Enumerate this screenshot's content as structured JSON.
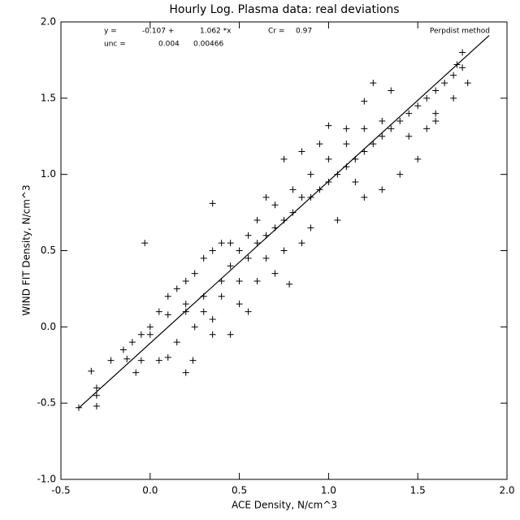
{
  "chart_data": {
    "type": "scatter",
    "title": "Hourly Log. Plasma data: real deviations",
    "x_label": "ACE Density, N/cm^3",
    "y_label": "WIND FIT Density, N/cm^3",
    "annotations": [
      "y =",
      "-0.107 +",
      "1.062 *x",
      "Cr =",
      "0.97",
      "unc =",
      "0.004",
      "0.00466",
      "Perpdist method"
    ],
    "xlim": [
      -0.5,
      2.0
    ],
    "ylim": [
      -1.0,
      2.0
    ],
    "xticks": [
      -0.5,
      {
        "value": 0,
        "label": "0.0"
      },
      0.5,
      {
        "value": 1,
        "label": "1.0"
      },
      1.5,
      {
        "value": 2,
        "label": "2.0"
      }
    ],
    "yticks": [
      {
        "value": -1,
        "label": "-1.0"
      },
      -0.5,
      {
        "value": 0,
        "label": "0.0"
      },
      0.5,
      {
        "value": 1,
        "label": "1.0"
      },
      1.5,
      {
        "value": 2,
        "label": "2.0"
      }
    ],
    "color": "#000000",
    "x": [
      -0.4,
      -0.3,
      -0.3,
      -0.3,
      -0.33,
      -0.22,
      -0.15,
      -0.13,
      -0.08,
      -0.05,
      -0.1,
      -0.05,
      0.0,
      0.05,
      0.1,
      0.15,
      0.2,
      0.24,
      -0.03,
      0.35,
      0.1,
      0.1,
      0.15,
      0.2,
      0.2,
      0.25,
      0.3,
      0.3,
      0.35,
      0.4,
      0.4,
      0.45,
      0.5,
      0.5,
      0.55,
      0.55,
      0.6,
      0.6,
      0.65,
      0.7,
      0.7,
      0.75,
      0.8,
      0.8,
      0.85,
      0.9,
      0.9,
      0.95,
      1.0,
      1.0,
      1.05,
      1.1,
      1.1,
      1.15,
      1.2,
      1.2,
      1.25,
      1.3,
      1.3,
      1.35,
      1.4,
      1.45,
      1.5,
      1.55,
      1.6,
      1.65,
      1.7,
      1.75,
      1.78,
      1.72,
      1.25,
      1.2,
      1.0,
      0.85,
      0.75,
      1.05,
      0.9,
      0.75,
      0.7,
      0.6,
      0.5,
      0.55,
      0.35,
      0.45,
      0.35,
      1.2,
      1.3,
      1.4,
      1.5,
      1.6,
      0.25,
      0.0,
      0.05,
      0.2,
      0.3,
      0.4,
      0.45,
      0.65,
      0.95,
      1.35,
      1.75,
      0.78,
      1.15,
      1.1,
      0.85,
      0.65,
      1.45,
      1.55,
      1.6,
      1.7
    ],
    "y": [
      -0.53,
      -0.52,
      -0.4,
      -0.45,
      -0.29,
      -0.22,
      -0.15,
      -0.21,
      -0.3,
      -0.22,
      -0.1,
      -0.05,
      -0.05,
      -0.22,
      -0.2,
      -0.1,
      -0.3,
      -0.22,
      0.55,
      0.81,
      0.08,
      0.2,
      0.25,
      0.3,
      0.1,
      0.35,
      0.2,
      0.45,
      0.5,
      0.55,
      0.3,
      0.4,
      0.5,
      0.3,
      0.6,
      0.45,
      0.55,
      0.7,
      0.6,
      0.65,
      0.8,
      0.7,
      0.75,
      0.9,
      0.85,
      0.85,
      1.0,
      0.9,
      0.95,
      1.1,
      1.0,
      1.05,
      1.2,
      1.1,
      1.15,
      1.3,
      1.2,
      1.25,
      1.35,
      1.3,
      1.35,
      1.4,
      1.45,
      1.5,
      1.55,
      1.6,
      1.65,
      1.7,
      1.6,
      1.72,
      1.6,
      1.48,
      1.32,
      1.15,
      1.1,
      0.7,
      0.65,
      0.5,
      0.35,
      0.3,
      0.15,
      0.1,
      0.05,
      -0.05,
      -0.05,
      0.85,
      0.9,
      1.0,
      1.1,
      1.35,
      0.0,
      0.0,
      0.1,
      0.15,
      0.1,
      0.2,
      0.55,
      0.85,
      1.2,
      1.55,
      1.8,
      0.28,
      0.95,
      1.3,
      0.55,
      0.45,
      1.25,
      1.3,
      1.4,
      1.5
    ],
    "fit_line": {
      "x": [
        -0.4,
        1.9
      ],
      "y": [
        -0.532,
        1.911
      ]
    }
  }
}
